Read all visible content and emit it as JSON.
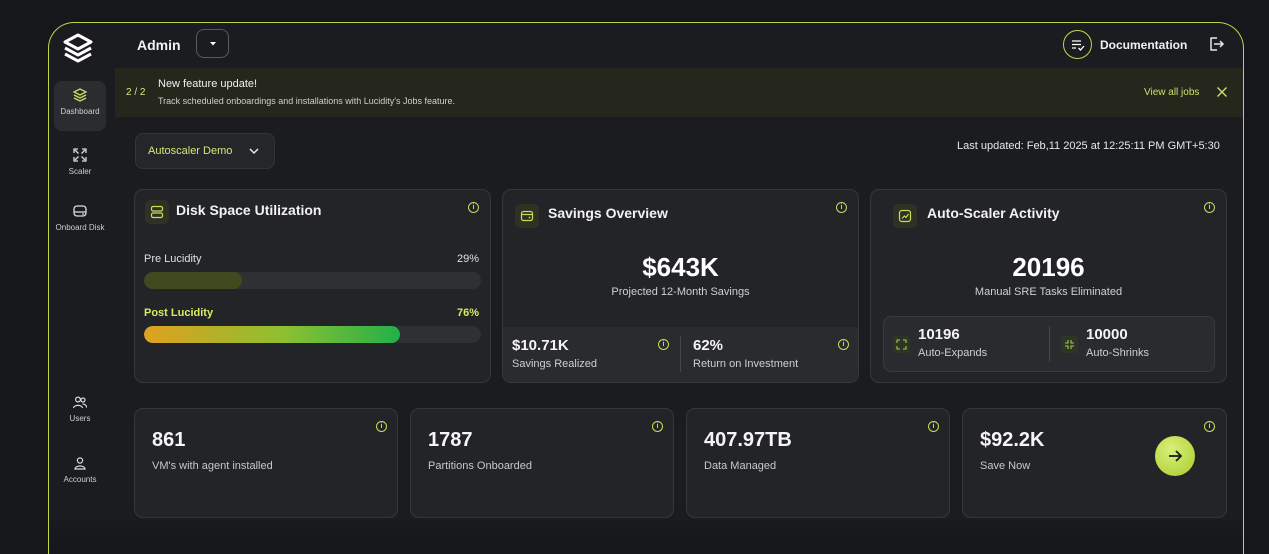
{
  "sidebar": {
    "items": [
      {
        "label": "Dashboard",
        "icon": "layers-icon",
        "active": true
      },
      {
        "label": "Scaler",
        "icon": "expand-icon"
      },
      {
        "label": "Onboard Disk",
        "icon": "disk-icon"
      },
      {
        "label": "Users",
        "icon": "users-icon"
      },
      {
        "label": "Accounts",
        "icon": "user-icon"
      }
    ]
  },
  "header": {
    "user": "Admin",
    "documentation": "Documentation"
  },
  "banner": {
    "count": "2 / 2",
    "title": "New feature update!",
    "subtitle": "Track scheduled onboardings and installations with Lucidity's Jobs feature.",
    "action": "View all jobs"
  },
  "toolbar": {
    "selected_demo": "Autoscaler Demo",
    "last_updated": "Last updated: Feb,11 2025 at 12:25:11 PM GMT+5:30"
  },
  "disk": {
    "title": "Disk Space Utilization",
    "pre_label": "Pre Lucidity",
    "pre_pct": "29%",
    "pre_value": 0.29,
    "post_label": "Post Lucidity",
    "post_pct": "76%",
    "post_value": 0.76
  },
  "savings": {
    "title": "Savings Overview",
    "value": "$643K",
    "caption": "Projected 12-Month Savings",
    "realized_value": "$10.71K",
    "realized_label": "Savings Realized",
    "roi_value": "62%",
    "roi_label": "Return on Investment"
  },
  "autoscaler": {
    "title": "Auto-Scaler Activity",
    "value": "20196",
    "caption": "Manual SRE Tasks Eliminated",
    "expands_value": "10196",
    "expands_label": "Auto-Expands",
    "shrinks_value": "10000",
    "shrinks_label": "Auto-Shrinks"
  },
  "stats": [
    {
      "value": "861",
      "label": "VM's with agent installed"
    },
    {
      "value": "1787",
      "label": "Partitions Onboarded"
    },
    {
      "value": "407.97TB",
      "label": "Data Managed"
    },
    {
      "value": "$92.2K",
      "label": "Save Now"
    }
  ],
  "colors": {
    "accent": "#b8d84a",
    "bar_pre": "#3f4a1f",
    "bar_post_start": "#e0a020",
    "bar_post_end": "#22b04a"
  }
}
